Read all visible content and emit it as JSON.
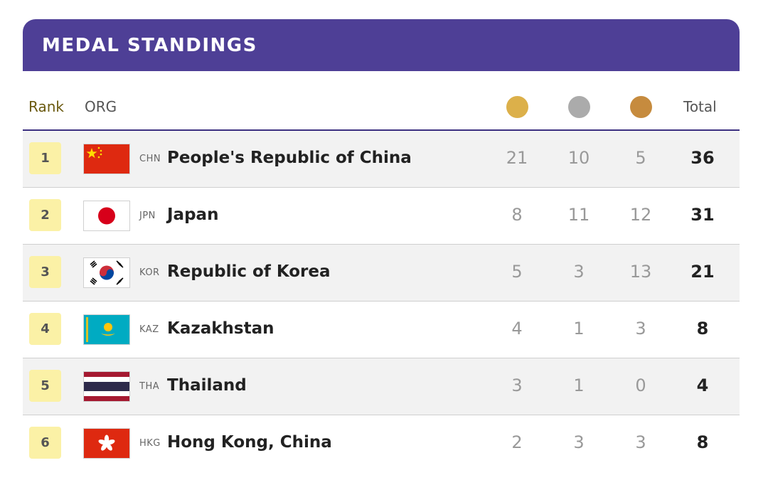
{
  "title": "MEDAL STANDINGS",
  "columns": {
    "rank": "Rank",
    "org": "ORG",
    "gold_icon": "gold-medal-icon",
    "silver_icon": "silver-medal-icon",
    "bronze_icon": "bronze-medal-icon",
    "total": "Total"
  },
  "colors": {
    "header_bg": "#4e3f96",
    "gold": "#dcb04a",
    "silver": "#ababab",
    "bronze": "#c68b3e",
    "rank_badge": "#fbf1a6"
  },
  "rows": [
    {
      "rank": "1",
      "flag_icon": "china-flag-icon",
      "code": "CHN",
      "name": "People's Republic of China",
      "gold": "21",
      "silver": "10",
      "bronze": "5",
      "total": "36"
    },
    {
      "rank": "2",
      "flag_icon": "japan-flag-icon",
      "code": "JPN",
      "name": "Japan",
      "gold": "8",
      "silver": "11",
      "bronze": "12",
      "total": "31"
    },
    {
      "rank": "3",
      "flag_icon": "korea-flag-icon",
      "code": "KOR",
      "name": "Republic of Korea",
      "gold": "5",
      "silver": "3",
      "bronze": "13",
      "total": "21"
    },
    {
      "rank": "4",
      "flag_icon": "kazakhstan-flag-icon",
      "code": "KAZ",
      "name": "Kazakhstan",
      "gold": "4",
      "silver": "1",
      "bronze": "3",
      "total": "8"
    },
    {
      "rank": "5",
      "flag_icon": "thailand-flag-icon",
      "code": "THA",
      "name": "Thailand",
      "gold": "3",
      "silver": "1",
      "bronze": "0",
      "total": "4"
    },
    {
      "rank": "6",
      "flag_icon": "hong-kong-flag-icon",
      "code": "HKG",
      "name": "Hong Kong, China",
      "gold": "2",
      "silver": "3",
      "bronze": "3",
      "total": "8"
    }
  ]
}
